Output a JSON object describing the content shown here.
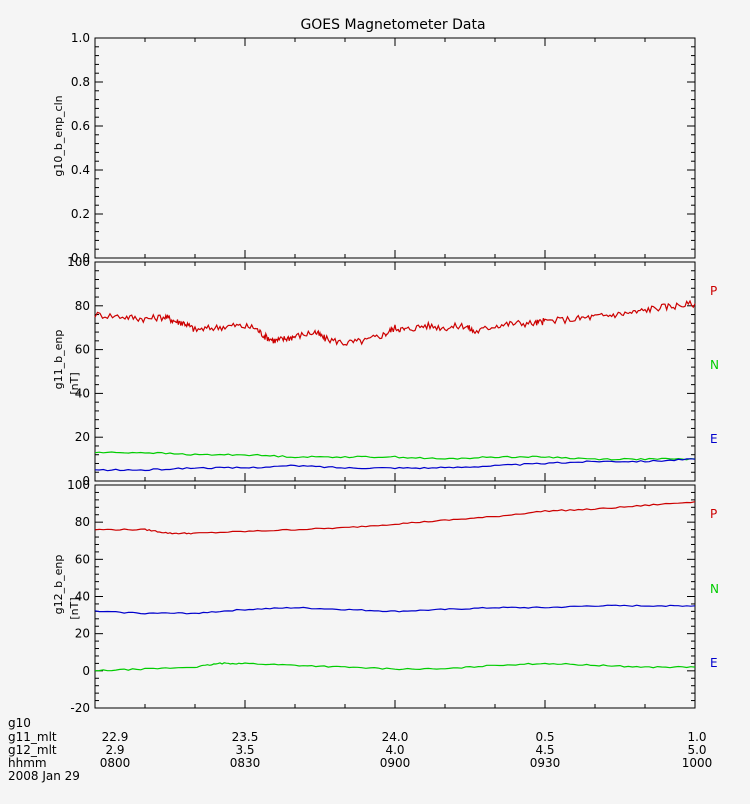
{
  "colors": {
    "background": "#f5f5f5",
    "axis": "#000000",
    "P": "#cc0000",
    "N": "#00cc00",
    "E": "#0000cc"
  },
  "title": "GOES Magnetometer Data",
  "legend_labels": [
    "P",
    "N",
    "E"
  ],
  "footer": {
    "rows": [
      {
        "label": "g10",
        "values": [
          "",
          "",
          "",
          "",
          ""
        ]
      },
      {
        "label": "g11_mlt",
        "values": [
          "22.9",
          "23.5",
          "24.0",
          "0.5",
          "1.0"
        ]
      },
      {
        "label": "g12_mlt",
        "values": [
          "2.9",
          "3.5",
          "4.0",
          "4.5",
          "5.0"
        ]
      },
      {
        "label": "hhmm",
        "values": [
          "0800",
          "0830",
          "0900",
          "0930",
          "1000"
        ]
      }
    ],
    "date": "2008 Jan 29"
  },
  "chart_data": [
    {
      "type": "line",
      "ylabel": "g10_b_enp_cln",
      "ylim": [
        0,
        1
      ],
      "yticks": [
        "0.0",
        "0.2",
        "0.4",
        "0.6",
        "0.8",
        "1.0"
      ],
      "xlim": [
        0,
        120
      ],
      "series": []
    },
    {
      "type": "line",
      "ylabel": "g11_b_enp",
      "yunit": "[nT]",
      "ylim": [
        0,
        100
      ],
      "yticks": [
        "0",
        "20",
        "40",
        "60",
        "80",
        "100"
      ],
      "xlim": [
        0,
        120
      ],
      "series": [
        {
          "name": "P",
          "color": "#cc0000",
          "x": [
            0,
            6,
            10,
            14,
            16,
            18,
            20,
            24,
            28,
            32,
            34,
            36,
            38,
            40,
            44,
            46,
            50,
            54,
            58,
            60,
            62,
            66,
            70,
            74,
            76,
            80,
            84,
            88,
            90,
            96,
            100,
            104,
            108,
            112,
            116,
            120
          ],
          "y": [
            76,
            75,
            74,
            75,
            73,
            72,
            69,
            70,
            71,
            70,
            66,
            64,
            65,
            66,
            68,
            65,
            63,
            64,
            67,
            70,
            69,
            71,
            70,
            71,
            68,
            71,
            72,
            72,
            73,
            74,
            75,
            76,
            77,
            79,
            80,
            81
          ]
        },
        {
          "name": "N",
          "color": "#00cc00",
          "x": [
            0,
            10,
            20,
            30,
            40,
            50,
            60,
            70,
            80,
            90,
            100,
            110,
            120
          ],
          "y": [
            13,
            13,
            12,
            12,
            11,
            11,
            11,
            10,
            11,
            11,
            10,
            10,
            10
          ]
        },
        {
          "name": "E",
          "color": "#0000cc",
          "x": [
            0,
            10,
            20,
            30,
            40,
            50,
            60,
            70,
            80,
            90,
            100,
            110,
            120
          ],
          "y": [
            5,
            5,
            6,
            6,
            7,
            6,
            6,
            6,
            7,
            8,
            9,
            9,
            10
          ]
        }
      ]
    },
    {
      "type": "line",
      "ylabel": "g12_b_enp",
      "yunit": "[nT]",
      "ylim": [
        -20,
        100
      ],
      "yticks": [
        "-20",
        "0",
        "20",
        "40",
        "60",
        "80",
        "100"
      ],
      "xlim": [
        0,
        120
      ],
      "series": [
        {
          "name": "P",
          "color": "#cc0000",
          "x": [
            0,
            10,
            15,
            20,
            30,
            40,
            50,
            60,
            70,
            80,
            90,
            100,
            110,
            120
          ],
          "y": [
            76,
            76,
            74,
            74,
            75,
            76,
            77,
            79,
            81,
            83,
            86,
            87,
            89,
            91
          ]
        },
        {
          "name": "N",
          "color": "#00cc00",
          "x": [
            0,
            10,
            20,
            25,
            30,
            40,
            50,
            60,
            70,
            80,
            90,
            100,
            110,
            120
          ],
          "y": [
            0,
            1,
            2,
            4,
            4,
            3,
            2,
            1,
            1,
            3,
            4,
            3,
            2,
            2
          ]
        },
        {
          "name": "E",
          "color": "#0000cc",
          "x": [
            0,
            10,
            20,
            30,
            40,
            50,
            60,
            70,
            80,
            90,
            100,
            110,
            120
          ],
          "y": [
            32,
            31,
            31,
            33,
            34,
            33,
            32,
            33,
            34,
            34,
            35,
            35,
            35
          ]
        }
      ]
    }
  ]
}
